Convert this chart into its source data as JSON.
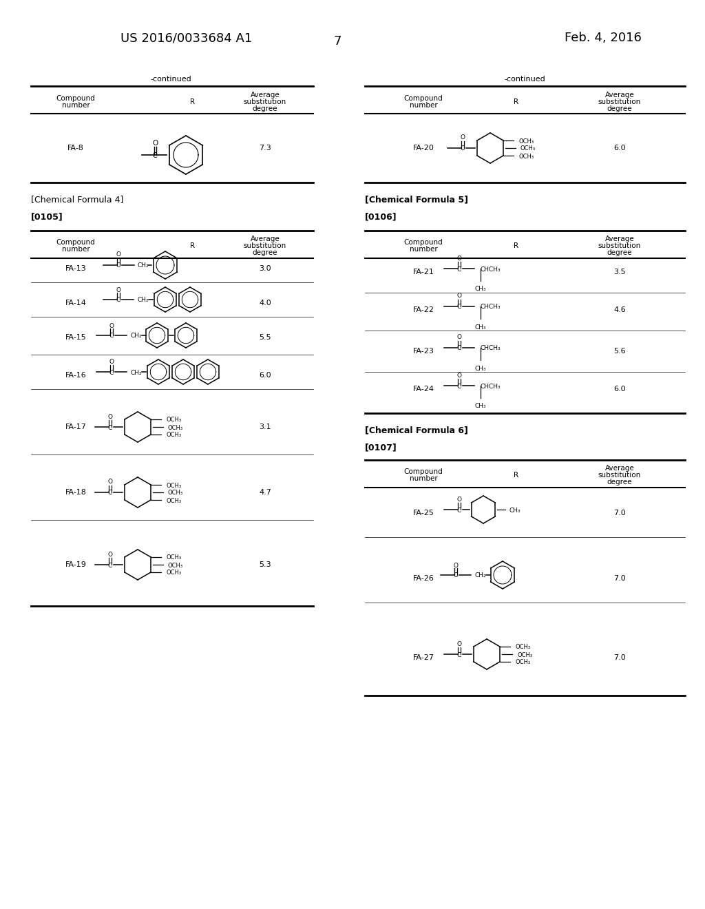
{
  "page_header_left": "US 2016/0033684 A1",
  "page_header_right": "Feb. 4, 2016",
  "page_number": "7",
  "background_color": "#ffffff",
  "text_color": "#000000",
  "font_size_header": 13,
  "font_size_body": 8,
  "font_size_label": 7.5,
  "font_size_formula_label": 9,
  "font_size_para": 8.5
}
